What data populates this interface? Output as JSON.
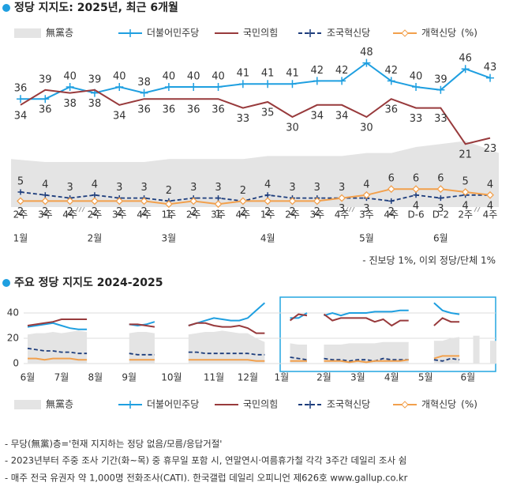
{
  "chart_data": [
    {
      "type": "line",
      "title": "정당 지지도: 2025년, 최근 6개월",
      "categories": [
        "2주",
        "3주",
        "4주",
        "2주",
        "3주",
        "4주",
        "1주",
        "2주",
        "3주",
        "4주",
        "1주",
        "2주",
        "3주",
        "4주",
        "3주",
        "4주",
        "D-6",
        "D-2",
        "2주",
        "4주"
      ],
      "month_labels": [
        "1월",
        null,
        null,
        "2월",
        null,
        null,
        "3월",
        null,
        null,
        null,
        "4월",
        null,
        null,
        null,
        "5월",
        null,
        null,
        "6월",
        null,
        null
      ],
      "ylim": [
        0,
        50
      ],
      "markers": true,
      "value_labels_shown": true,
      "unit": "(%)",
      "annotation": "- 진보당 1%, 이외 정당/단체 1%",
      "series": [
        {
          "name": "無黨층",
          "color": "#e4e4e4",
          "style": "area",
          "values": [
            16,
            15,
            15,
            15,
            15,
            15,
            16,
            16,
            16,
            16,
            17,
            17,
            17,
            17,
            18,
            18,
            20,
            21,
            22,
            18
          ]
        },
        {
          "name": "더불어민주당",
          "color": "#1f9fe0",
          "style": "line",
          "marker": "plus",
          "values": [
            36,
            36,
            40,
            38,
            40,
            38,
            40,
            40,
            40,
            41,
            41,
            41,
            42,
            42,
            48,
            42,
            40,
            39,
            46,
            43
          ]
        },
        {
          "name": "국민의힘",
          "color": "#983a3c",
          "style": "line",
          "marker": "none",
          "values": [
            34,
            39,
            38,
            39,
            34,
            36,
            36,
            36,
            36,
            33,
            35,
            30,
            34,
            34,
            30,
            36,
            33,
            33,
            21,
            23
          ]
        },
        {
          "name": "조국혁신당",
          "color": "#1d3d7c",
          "style": "dash",
          "marker": "plus",
          "values": [
            5,
            4,
            3,
            4,
            3,
            3,
            2,
            3,
            3,
            2,
            4,
            3,
            3,
            3,
            3,
            2,
            4,
            3,
            4,
            4
          ]
        },
        {
          "name": "개혁신당",
          "color": "#f2a04c",
          "style": "line",
          "marker": "diamond",
          "values": [
            2,
            2,
            2,
            2,
            2,
            2,
            1,
            2,
            1,
            2,
            2,
            2,
            2,
            3,
            4,
            6,
            6,
            6,
            5,
            4
          ]
        }
      ]
    },
    {
      "type": "line",
      "title": "주요 정당 지지도 2024-2025",
      "categories": [
        "6월",
        null,
        null,
        null,
        "7월",
        null,
        null,
        null,
        "8월",
        null,
        null,
        null,
        "9월",
        null,
        null,
        null,
        null,
        "10월",
        null,
        null,
        null,
        null,
        "11월",
        null,
        null,
        null,
        "12월",
        null,
        null,
        null,
        "1월",
        null,
        null,
        null,
        null,
        "2월",
        null,
        null,
        null,
        "3월",
        null,
        null,
        null,
        "4월",
        null,
        null,
        null,
        "5월",
        null,
        null,
        null,
        null,
        "6월",
        null,
        null,
        null
      ],
      "ylim": [
        0,
        50
      ],
      "yticks": [
        0,
        20,
        40
      ],
      "grid": true,
      "markers": false,
      "value_labels_shown": false,
      "unit": "(%)",
      "series": [
        {
          "name": "無黨층",
          "color": "#e4e4e4",
          "style": "area",
          "values": [
            23,
            24,
            24,
            25,
            24,
            25,
            26,
            25,
            null,
            null,
            null,
            null,
            24,
            25,
            25,
            24,
            null,
            null,
            null,
            23,
            24,
            25,
            25,
            26,
            25,
            24,
            24,
            20,
            17,
            null,
            null,
            16,
            15,
            15,
            null,
            15,
            15,
            15,
            16,
            16,
            16,
            16,
            17,
            17,
            17,
            17,
            null,
            null,
            18,
            18,
            20,
            21,
            null,
            22,
            null,
            18
          ]
        },
        {
          "name": "더불어민주당",
          "color": "#1f9fe0",
          "style": "line",
          "values": [
            29,
            30,
            31,
            32,
            30,
            28,
            27,
            27,
            null,
            null,
            null,
            null,
            31,
            30,
            31,
            33,
            null,
            34,
            null,
            30,
            32,
            34,
            36,
            35,
            34,
            34,
            36,
            42,
            48,
            null,
            null,
            36,
            36,
            40,
            null,
            38,
            40,
            38,
            40,
            40,
            40,
            41,
            41,
            41,
            42,
            42,
            null,
            null,
            48,
            42,
            40,
            39,
            null,
            46,
            null,
            43
          ]
        },
        {
          "name": "국민의힘",
          "color": "#983a3c",
          "style": "line",
          "values": [
            30,
            31,
            32,
            33,
            35,
            35,
            35,
            35,
            null,
            null,
            null,
            null,
            31,
            31,
            30,
            29,
            null,
            null,
            null,
            30,
            32,
            32,
            30,
            29,
            29,
            30,
            28,
            24,
            24,
            null,
            null,
            34,
            39,
            38,
            null,
            39,
            34,
            36,
            36,
            36,
            36,
            33,
            35,
            30,
            34,
            34,
            null,
            null,
            30,
            36,
            33,
            33,
            null,
            21,
            null,
            23
          ]
        },
        {
          "name": "조국혁신당",
          "color": "#1d3d7c",
          "style": "dash",
          "values": [
            12,
            11,
            10,
            10,
            9,
            9,
            8,
            8,
            null,
            null,
            null,
            null,
            8,
            7,
            7,
            7,
            null,
            7,
            null,
            9,
            9,
            8,
            8,
            8,
            8,
            8,
            8,
            7,
            7,
            null,
            null,
            5,
            4,
            3,
            null,
            4,
            3,
            3,
            2,
            3,
            3,
            2,
            4,
            3,
            3,
            3,
            null,
            null,
            3,
            2,
            4,
            3,
            null,
            4,
            null,
            4
          ]
        },
        {
          "name": "개혁신당",
          "color": "#f2a04c",
          "style": "line",
          "values": [
            4,
            4,
            3,
            4,
            4,
            4,
            3,
            3,
            null,
            null,
            null,
            null,
            3,
            3,
            3,
            3,
            null,
            3,
            null,
            3,
            3,
            3,
            3,
            3,
            3,
            3,
            3,
            2,
            2,
            null,
            null,
            2,
            2,
            2,
            null,
            2,
            2,
            2,
            1,
            2,
            1,
            2,
            2,
            2,
            2,
            3,
            null,
            null,
            4,
            6,
            6,
            6,
            null,
            5,
            null,
            4
          ]
        }
      ]
    }
  ],
  "footnotes": [
    "- 무당(無黨)층='현재 지지하는 정당 없음/모름/응답거절'",
    "- 2023년부터 주중 조사 기간(화~목) 중 휴무일 포함 시, 연말연시·여름휴가철 각각 3주간 데일리 조사 쉼",
    "- 매주 전국 유권자 약 1,000명 전화조사(CATI). 한국갤럽 데일리 오피니언 제626호 www.gallup.co.kr"
  ]
}
